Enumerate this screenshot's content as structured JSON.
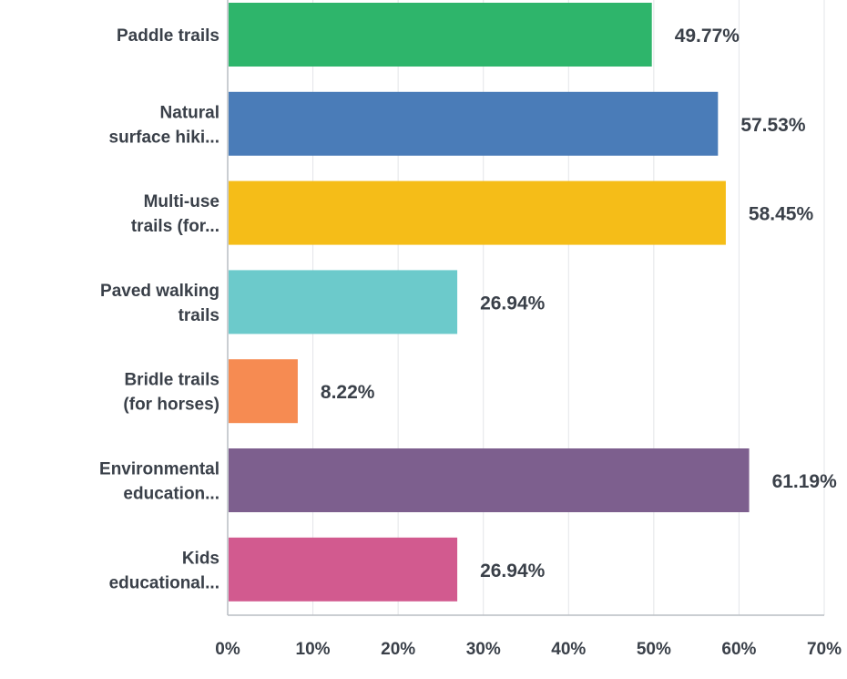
{
  "chart_data": {
    "type": "bar",
    "orientation": "horizontal",
    "title": "",
    "xlabel": "",
    "ylabel": "",
    "xlim": [
      0,
      70
    ],
    "grid": true,
    "categories": [
      [
        "Paddle trails"
      ],
      [
        "Natural",
        "surface hiki..."
      ],
      [
        "Multi-use",
        "trails (for..."
      ],
      [
        "Paved walking",
        "trails"
      ],
      [
        "Bridle trails",
        "(for horses)"
      ],
      [
        "Environmental",
        "education..."
      ],
      [
        "Kids",
        "educational..."
      ]
    ],
    "values": [
      49.77,
      57.53,
      58.45,
      26.94,
      8.22,
      61.19,
      26.94
    ],
    "value_labels": [
      "49.77%",
      "57.53%",
      "58.45%",
      "26.94%",
      "8.22%",
      "61.19%",
      "26.94%"
    ],
    "colors": [
      "#2eb56b",
      "#4a7cb8",
      "#f5bd18",
      "#6ccacb",
      "#f68b52",
      "#7d5f8e",
      "#d25a8f"
    ],
    "ticks": [
      0,
      10,
      20,
      30,
      40,
      50,
      60,
      70
    ],
    "tick_labels": [
      "0%",
      "10%",
      "20%",
      "30%",
      "40%",
      "50%",
      "60%",
      "70%"
    ]
  }
}
